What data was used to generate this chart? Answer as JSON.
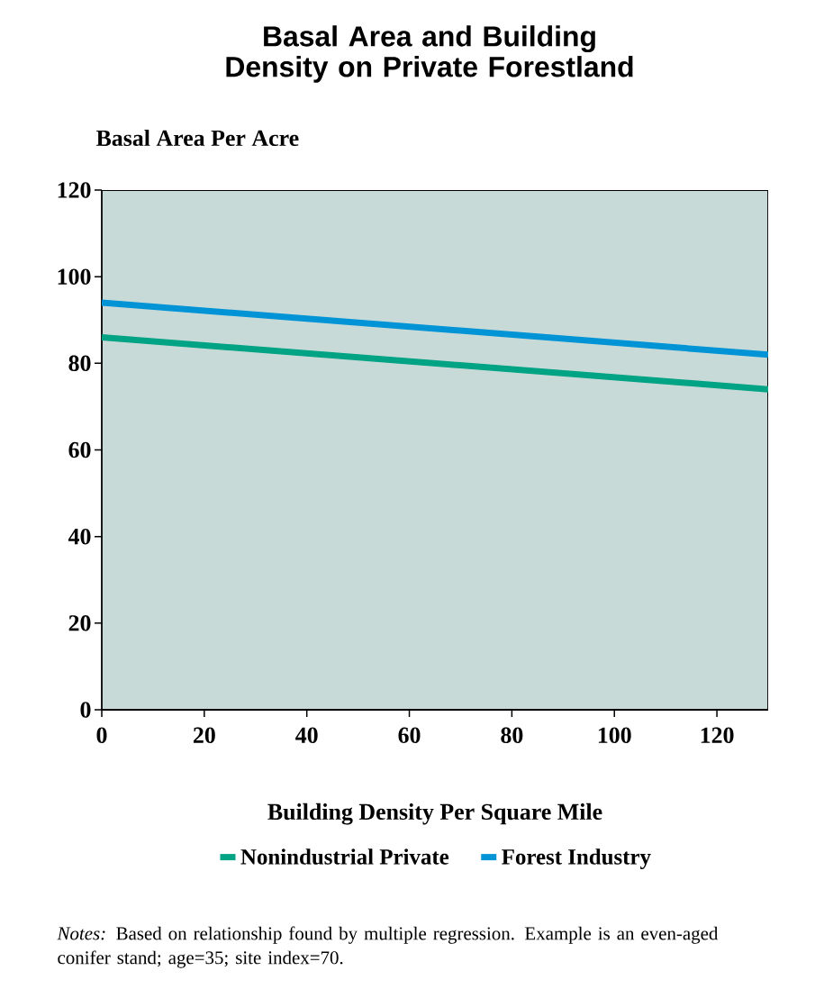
{
  "chart_data": {
    "type": "line",
    "title": "Basal Area and Building Density on Private Forestland",
    "ylabel": "Basal Area Per Acre",
    "xlabel": "Building Density Per Square Mile",
    "annotations": [
      "*Notes:* Based on relationship found by multiple regression.  Example is an even-aged conifer stand; age=35; site index=70."
    ],
    "x": [
      0,
      130
    ],
    "series": [
      {
        "name": "Nonindustrial Private",
        "color": "#00a383",
        "values": [
          86,
          74
        ]
      },
      {
        "name": "Forest Industry",
        "color": "#0094d6",
        "values": [
          94,
          82
        ]
      }
    ],
    "xlim": [
      0,
      130
    ],
    "ylim": [
      0,
      120
    ],
    "xticks": [
      0,
      20,
      40,
      60,
      80,
      100,
      120
    ],
    "yticks": [
      0,
      20,
      40,
      60,
      80,
      100,
      120
    ],
    "grid": false,
    "legend": "bottom",
    "marker": "none",
    "line_style": "solid"
  }
}
